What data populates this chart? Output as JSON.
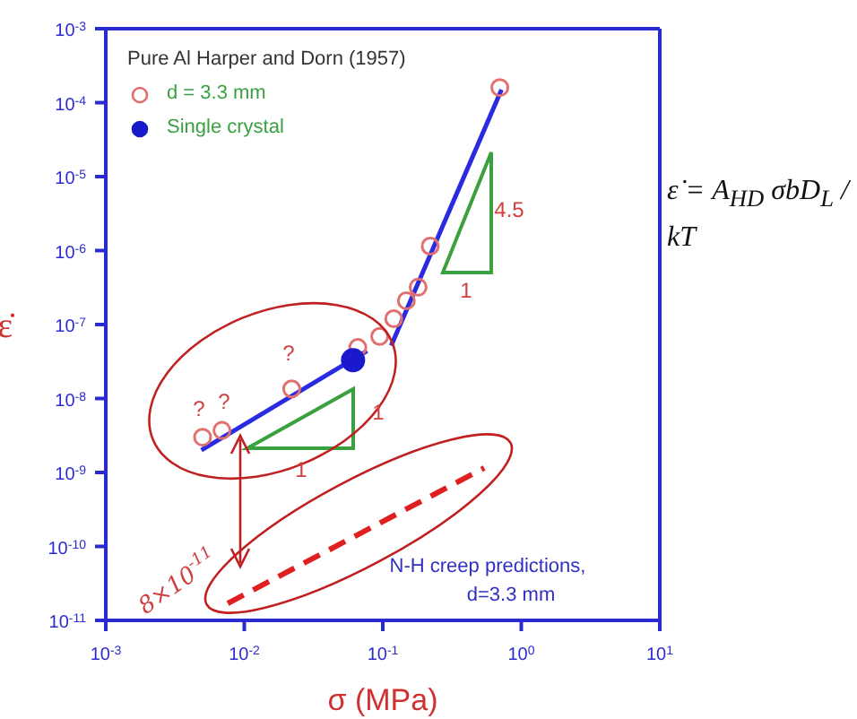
{
  "chart_data": {
    "type": "scatter",
    "xlabel": "σ (MPa)",
    "ylabel": "ε̇",
    "legend_title": "Pure Al  Harper and Dorn (1957)",
    "legend": "top left",
    "log": "xy",
    "grid": false,
    "xlim": [
      0.001,
      10
    ],
    "ylim": [
      1e-11,
      0.001
    ],
    "xticks": [
      {
        "value": 0.001,
        "label": "10$^{-3}$"
      },
      {
        "value": 0.01,
        "label": "10$^{-2}$"
      },
      {
        "value": 0.1,
        "label": "10$^{-1}$"
      },
      {
        "value": 1,
        "label": "10$^{0}$"
      },
      {
        "value": 10,
        "label": "10$^{1}$"
      }
    ],
    "yticks": [
      {
        "value": 1e-11,
        "label": "10$^{-11}$"
      },
      {
        "value": 1e-10,
        "label": "10$^{-10}$"
      },
      {
        "value": 1e-09,
        "label": "10$^{-9}$"
      },
      {
        "value": 1e-08,
        "label": "10$^{-8}$"
      },
      {
        "value": 1e-07,
        "label": "10$^{-7}$"
      },
      {
        "value": 1e-06,
        "label": "10$^{-6}$"
      },
      {
        "value": 1e-05,
        "label": "10$^{-5}$"
      },
      {
        "value": 0.0001,
        "label": "10$^{-4}$"
      },
      {
        "value": 0.001,
        "label": "10$^{-3}$"
      }
    ],
    "series": [
      {
        "name": "d = 3.3 mm",
        "marker": "circle",
        "color": "#e07070",
        "x": [
          0.005,
          0.0069,
          0.022,
          0.066,
          0.095,
          0.12,
          0.148,
          0.18,
          0.22,
          0.7
        ],
        "values": [
          3e-09,
          3.7e-09,
          1.35e-08,
          4.9e-08,
          6.9e-08,
          1.2e-07,
          2.1e-07,
          3.2e-07,
          1.15e-06,
          0.00016
        ]
      },
      {
        "name": "Single crystal",
        "marker": "circle",
        "color": "#1a1acc",
        "x": [
          0.061
        ],
        "values": [
          3.3e-08
        ]
      },
      {
        "type": "line",
        "color": "#2a2ae0",
        "x": [
          0.0049,
          0.077
        ],
        "values": [
          2e-09,
          4.4e-08
        ]
      },
      {
        "type": "line",
        "color": "#2a2ae0",
        "x": [
          0.115,
          0.72
        ],
        "values": [
          5.2e-08,
          0.00015
        ]
      },
      {
        "type": "line",
        "color": "#e02020",
        "line_style": "dashed",
        "x": [
          0.0076,
          0.54
        ],
        "values": [
          1.7e-11,
          1.15e-09
        ]
      }
    ],
    "annotations": [
      "4.5",
      "1",
      "1",
      "1",
      "?",
      "?",
      "?",
      "N-H creep predictions,",
      "d=3.3 mm",
      "8×10$^{-11}$",
      "ε̇ = A$_{HD}$ σbD$_{L}$ / kT"
    ]
  }
}
